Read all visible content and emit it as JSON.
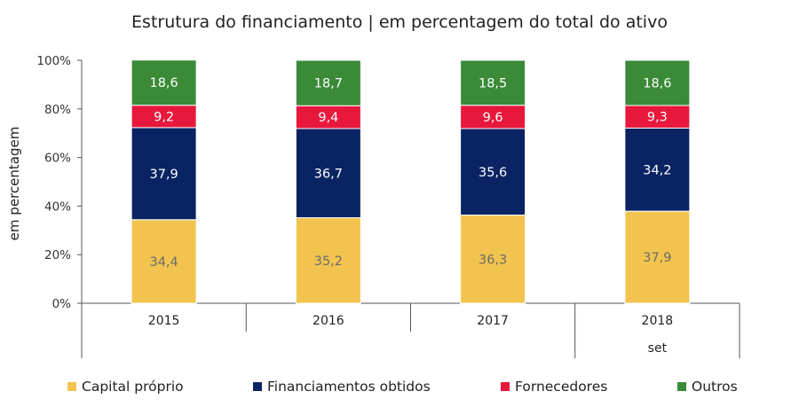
{
  "chart_data": {
    "type": "bar",
    "stacked": true,
    "title": "Estrutura do financiamento  | em percentagem  do total  do ativo",
    "ylabel": "em percentagem",
    "ylim": [
      0,
      100
    ],
    "yticks": [
      "0%",
      "20%",
      "40%",
      "60%",
      "80%",
      "100%"
    ],
    "categories": [
      "2015",
      "2016",
      "2017",
      "2018"
    ],
    "category_sublabels": [
      "",
      "",
      "",
      "set"
    ],
    "series": [
      {
        "name": "Capital próprio",
        "color": "#F2C44F",
        "label_color": "#6b6b6b",
        "values": [
          34.4,
          35.2,
          36.3,
          37.9
        ],
        "labels": [
          "34,4",
          "35,2",
          "36,3",
          "37,9"
        ]
      },
      {
        "name": "Financiamentos obtidos",
        "color": "#0A2463",
        "label_color": "#ffffff",
        "values": [
          37.9,
          36.7,
          35.6,
          34.2
        ],
        "labels": [
          "37,9",
          "36,7",
          "35,6",
          "34,2"
        ]
      },
      {
        "name": "Fornecedores",
        "color": "#E8183C",
        "label_color": "#ffffff",
        "values": [
          9.2,
          9.4,
          9.6,
          9.3
        ],
        "labels": [
          "9,2",
          "9,4",
          "9,6",
          "9,3"
        ]
      },
      {
        "name": "Outros",
        "color": "#3A8A37",
        "label_color": "#ffffff",
        "values": [
          18.6,
          18.7,
          18.5,
          18.6
        ],
        "labels": [
          "18,6",
          "18,7",
          "18,5",
          "18,6"
        ]
      }
    ],
    "legend_position": "bottom",
    "grid": false
  }
}
